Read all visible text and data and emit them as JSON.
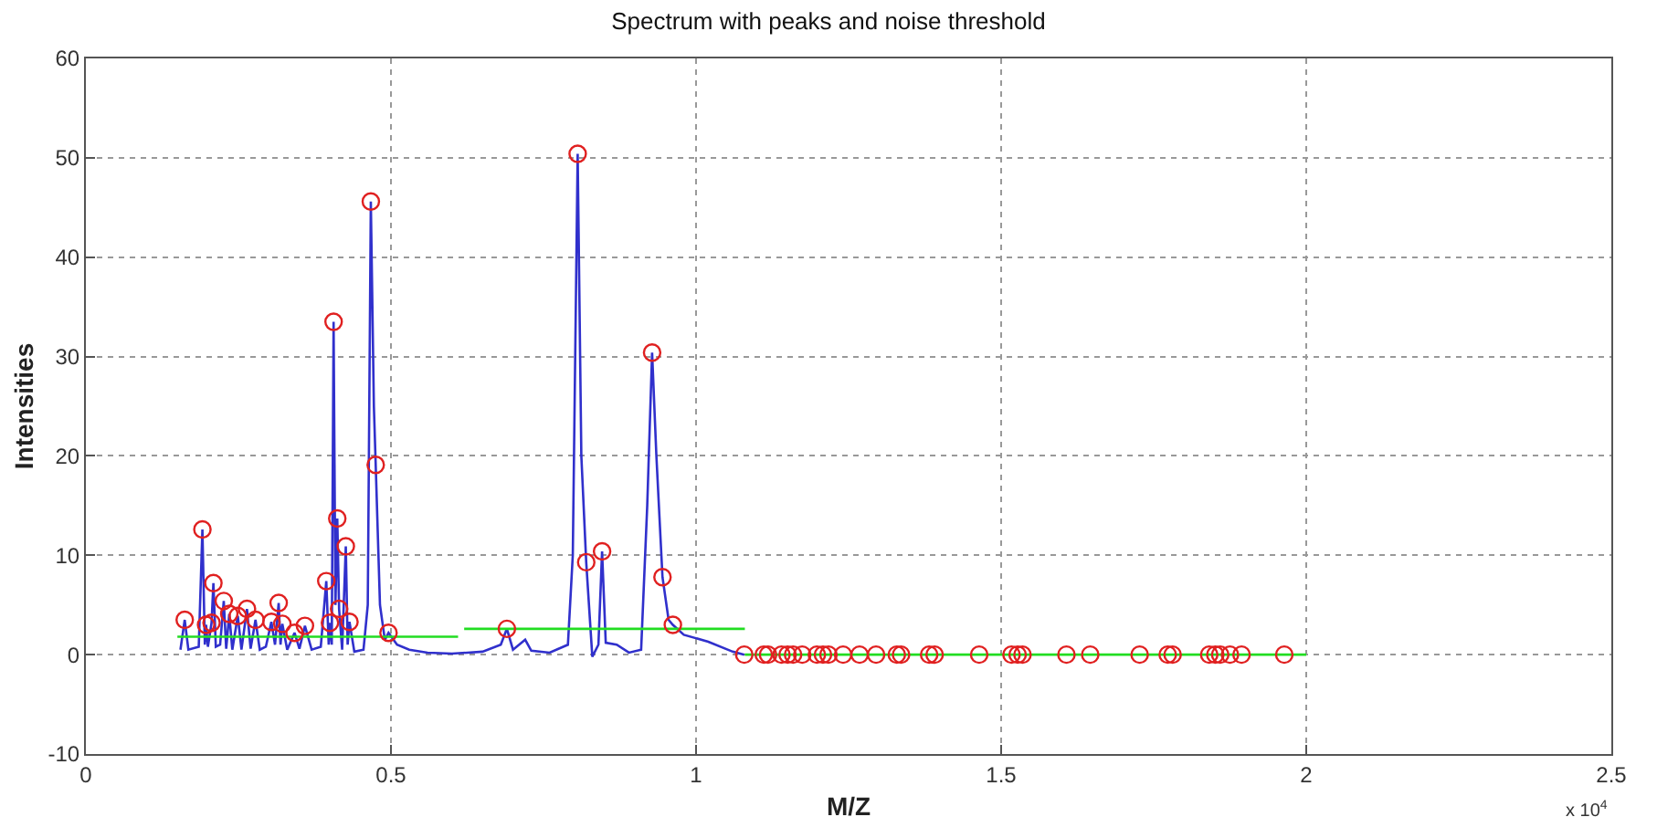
{
  "chart_data": {
    "type": "line",
    "title": "Spectrum with peaks and noise threshold",
    "xlabel": "M/Z",
    "ylabel": "Intensities",
    "annotations": [
      "x 10$^{4}$"
    ],
    "xlim": [
      0,
      2.5
    ],
    "xticks": [
      0,
      0.5,
      1,
      1.5,
      2,
      2.5
    ],
    "ylim": [
      -10,
      60
    ],
    "yticks": [
      -10,
      0,
      10,
      20,
      30,
      40,
      50,
      60
    ],
    "grid": true,
    "series": [
      {
        "color": "#3030cc",
        "marker": "none",
        "line_style": "solid",
        "x": [
          0.155,
          0.162,
          0.168,
          0.185,
          0.191,
          0.195,
          0.197,
          0.2,
          0.206,
          0.209,
          0.213,
          0.22,
          0.226,
          0.23,
          0.235,
          0.24,
          0.249,
          0.255,
          0.264,
          0.27,
          0.278,
          0.285,
          0.295,
          0.304,
          0.31,
          0.316,
          0.319,
          0.322,
          0.33,
          0.342,
          0.35,
          0.359,
          0.37,
          0.385,
          0.394,
          0.398,
          0.4,
          0.403,
          0.406,
          0.409,
          0.412,
          0.415,
          0.42,
          0.426,
          0.429,
          0.432,
          0.44,
          0.455,
          0.462,
          0.467,
          0.472,
          0.475,
          0.482,
          0.49,
          0.496,
          0.51,
          0.53,
          0.56,
          0.6,
          0.65,
          0.68,
          0.69,
          0.7,
          0.72,
          0.73,
          0.76,
          0.79,
          0.798,
          0.806,
          0.812,
          0.82,
          0.83,
          0.84,
          0.846,
          0.852,
          0.87,
          0.89,
          0.91,
          0.92,
          0.928,
          0.935,
          0.945,
          0.955,
          0.962,
          0.98,
          1.02,
          1.06,
          1.079
        ],
        "values": [
          0.5,
          3.5,
          0.5,
          0.8,
          12.6,
          1,
          3.0,
          0.8,
          3.2,
          7.2,
          0.8,
          1,
          5.4,
          0.6,
          4.1,
          0.5,
          3.9,
          0.5,
          4.6,
          0.6,
          3.5,
          0.5,
          0.8,
          3.3,
          1,
          5.2,
          1,
          3.1,
          0.5,
          2.2,
          0.6,
          2.9,
          0.5,
          0.8,
          7.4,
          1,
          3.2,
          1,
          33.5,
          5,
          13.7,
          4.6,
          0.5,
          10.9,
          1,
          3.3,
          0.3,
          0.5,
          5,
          45.6,
          25,
          19.1,
          5,
          1.5,
          2.2,
          1,
          0.5,
          0.2,
          0.1,
          0.3,
          1,
          2.6,
          0.5,
          1.5,
          0.4,
          0.2,
          1,
          10,
          50.4,
          20,
          9.3,
          -0.2,
          1,
          10.4,
          1.2,
          1,
          0.2,
          0.5,
          15,
          30.4,
          20,
          7.8,
          3.5,
          3.0,
          2,
          1.3,
          0.3,
          0
        ]
      },
      {
        "color": "#22dd22",
        "marker": "none",
        "line_style": "solid",
        "x": [
          0.15,
          0.61
        ],
        "values": [
          1.8,
          1.8
        ]
      },
      {
        "color": "#22dd22",
        "marker": "none",
        "line_style": "solid",
        "x": [
          0.62,
          1.08
        ],
        "values": [
          2.6,
          2.6
        ]
      },
      {
        "color": "#22dd22",
        "marker": "none",
        "line_style": "solid",
        "x": [
          1.08,
          2.0
        ],
        "values": [
          0,
          0
        ]
      },
      {
        "type": "scatter",
        "color": "#e02020",
        "marker": "circle",
        "x": [
          0.162,
          0.191,
          0.197,
          0.206,
          0.209,
          0.226,
          0.235,
          0.249,
          0.264,
          0.278,
          0.304,
          0.316,
          0.322,
          0.342,
          0.359,
          0.394,
          0.4,
          0.406,
          0.412,
          0.415,
          0.426,
          0.432,
          0.467,
          0.475,
          0.496,
          0.69,
          0.806,
          0.82,
          0.846,
          0.928,
          0.945,
          0.962,
          1.079,
          1.111,
          1.118,
          1.14,
          1.15,
          1.159,
          1.174,
          1.198,
          1.208,
          1.217,
          1.241,
          1.268,
          1.295,
          1.329,
          1.336,
          1.382,
          1.391,
          1.464,
          1.517,
          1.527,
          1.535,
          1.607,
          1.646,
          1.727,
          1.773,
          1.781,
          1.841,
          1.851,
          1.859,
          1.875,
          1.894,
          1.964
        ],
        "values": [
          3.5,
          12.6,
          3.0,
          3.2,
          7.2,
          5.4,
          4.1,
          3.9,
          4.6,
          3.5,
          3.3,
          5.2,
          3.1,
          2.2,
          2.9,
          7.4,
          3.2,
          33.5,
          13.7,
          4.6,
          10.9,
          3.3,
          45.6,
          19.1,
          2.2,
          2.6,
          50.4,
          9.3,
          10.4,
          30.4,
          7.8,
          3.0,
          0,
          0,
          0,
          0,
          0,
          0,
          0,
          0,
          0,
          0,
          0,
          0,
          0,
          0,
          0,
          0,
          0,
          0,
          0,
          0,
          0,
          0,
          0,
          0,
          0,
          0,
          0,
          0,
          0,
          0,
          0,
          0
        ]
      }
    ]
  }
}
